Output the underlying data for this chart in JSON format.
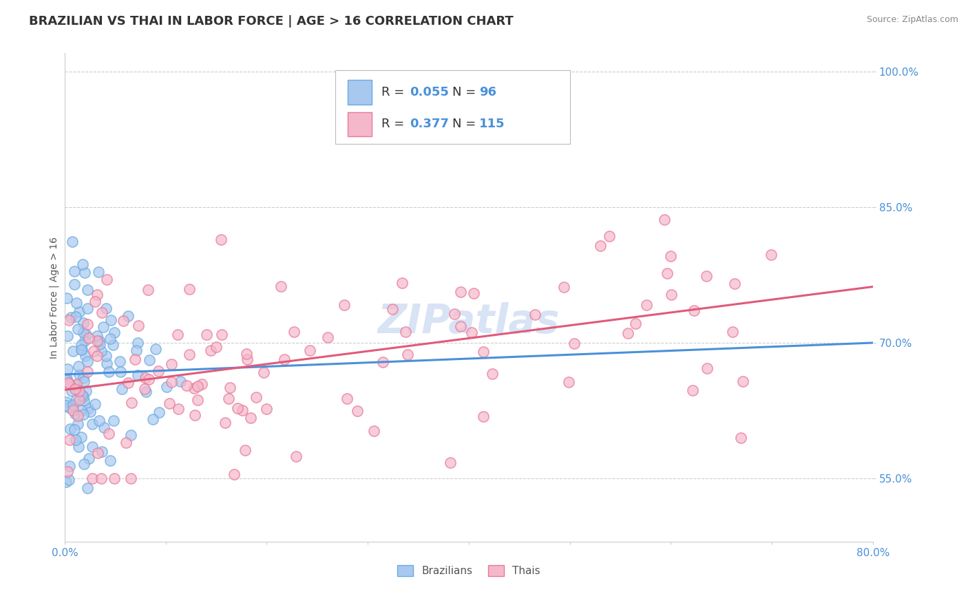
{
  "title": "BRAZILIAN VS THAI IN LABOR FORCE | AGE > 16 CORRELATION CHART",
  "source_text": "Source: ZipAtlas.com",
  "ylabel": "In Labor Force | Age > 16",
  "xlim": [
    0.0,
    0.8
  ],
  "ylim": [
    0.48,
    1.02
  ],
  "ytick_positions": [
    0.55,
    0.7,
    0.85,
    1.0
  ],
  "ytick_labels": [
    "55.0%",
    "70.0%",
    "85.0%",
    "100.0%"
  ],
  "brazil_color": "#a8c8f0",
  "brazil_edge_color": "#6aabdf",
  "thai_color": "#f5b8ca",
  "thai_edge_color": "#e8789a",
  "brazil_line_color": "#4a90d9",
  "thai_line_color": "#e05a7a",
  "brazil_R": 0.055,
  "brazil_N": 96,
  "thai_R": 0.377,
  "thai_N": 115,
  "brazil_line_x0": 0.0,
  "brazil_line_y0": 0.665,
  "brazil_line_x1": 0.8,
  "brazil_line_y1": 0.7,
  "thai_line_x0": 0.0,
  "thai_line_y0": 0.648,
  "thai_line_x1": 0.8,
  "thai_line_y1": 0.762,
  "watermark": "ZIPatlas",
  "background_color": "#ffffff",
  "grid_color": "#cccccc",
  "tick_color": "#4a90d9",
  "legend_label_color": "#333333",
  "legend_value_color": "#4a90d9",
  "title_fontsize": 13,
  "axis_label_fontsize": 10,
  "tick_fontsize": 11,
  "legend_fontsize": 13
}
